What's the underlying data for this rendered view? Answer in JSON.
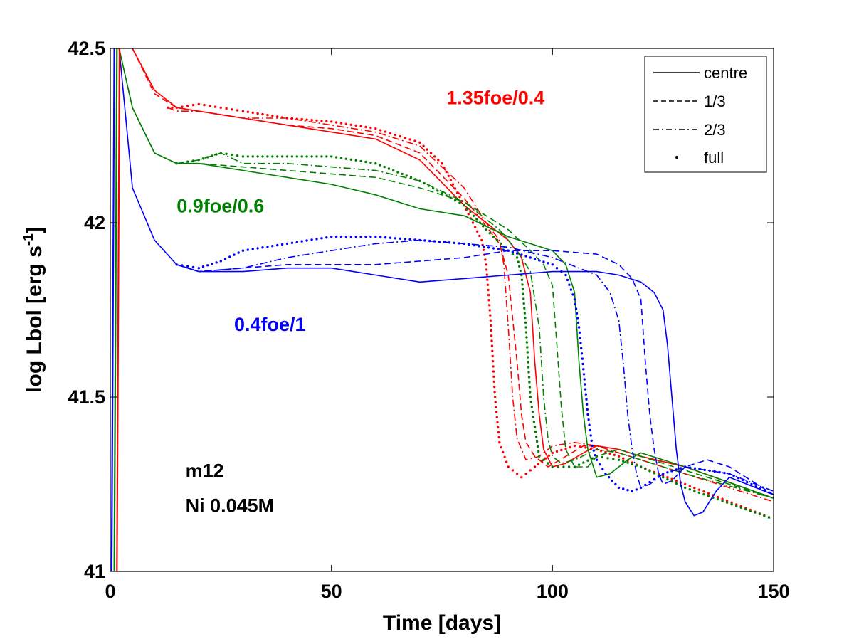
{
  "chart_data": {
    "type": "line",
    "title": "",
    "xlabel": "Time [days]",
    "ylabel": "log Lbol [erg s",
    "ylabel_sup": "-1",
    "ylabel_tail": "]",
    "xlim": [
      0,
      150
    ],
    "ylim": [
      41,
      42.5
    ],
    "xticks": [
      0,
      50,
      100,
      150
    ],
    "yticks": [
      41,
      41.5,
      42,
      42.5
    ],
    "xtick_labels": [
      "0",
      "50",
      "100",
      "150"
    ],
    "ytick_labels": [
      "41",
      "41.5",
      "42",
      "42.5"
    ],
    "grid": false,
    "legend_position": "top-right",
    "legend": [
      {
        "label": "centre",
        "style": "solid"
      },
      {
        "label": "1/3",
        "style": "dashed"
      },
      {
        "label": "2/3",
        "style": "dashdot"
      },
      {
        "label": "full",
        "style": "dots"
      }
    ],
    "annotations": [
      {
        "text": "1.35foe/0.4",
        "color": "#ff0000",
        "x": 76,
        "y": 42.34
      },
      {
        "text": "0.9foe/0.6",
        "color": "#008000",
        "x": 15,
        "y": 42.03
      },
      {
        "text": "0.4foe/1",
        "color": "#0000ff",
        "x": 28,
        "y": 41.69
      },
      {
        "text": "m12",
        "color": "#000000",
        "x": 17,
        "y": 41.27
      },
      {
        "text": "Ni 0.045M",
        "color": "#000000",
        "x": 17,
        "y": 41.17
      }
    ],
    "colors": {
      "red": "#ff0000",
      "green": "#008000",
      "blue": "#0000ff"
    },
    "series": [
      {
        "name": "1.35foe/0.4 centre",
        "color": "#ff0000",
        "style": "solid",
        "x": [
          5,
          10,
          15,
          20,
          30,
          40,
          50,
          60,
          70,
          80,
          85,
          90,
          93,
          95,
          96,
          97,
          98,
          100,
          103,
          107,
          110,
          115,
          120,
          130,
          150
        ],
        "y": [
          42.5,
          42.38,
          42.33,
          42.32,
          42.3,
          42.28,
          42.26,
          42.24,
          42.18,
          42.05,
          42.0,
          41.95,
          41.9,
          41.8,
          41.6,
          41.45,
          41.35,
          41.3,
          41.31,
          41.34,
          41.36,
          41.35,
          41.33,
          41.3,
          41.21
        ]
      },
      {
        "name": "1.35foe/0.4 1/3",
        "color": "#ff0000",
        "style": "dashed",
        "x": [
          5,
          10,
          15,
          20,
          30,
          40,
          50,
          60,
          70,
          80,
          85,
          88,
          90,
          92,
          93,
          94,
          96,
          99,
          103,
          107,
          110,
          115,
          120,
          130,
          150
        ],
        "y": [
          42.5,
          42.37,
          42.33,
          42.32,
          42.3,
          42.28,
          42.27,
          42.25,
          42.2,
          42.07,
          41.99,
          41.94,
          41.85,
          41.6,
          41.45,
          41.37,
          41.33,
          41.3,
          41.33,
          41.36,
          41.36,
          41.35,
          41.33,
          41.3,
          41.21
        ]
      },
      {
        "name": "1.35foe/0.4 2/3",
        "color": "#ff0000",
        "style": "dashdot",
        "x": [
          13,
          15,
          20,
          30,
          40,
          50,
          60,
          70,
          80,
          85,
          88,
          89,
          90,
          91,
          92,
          94,
          97,
          100,
          105,
          110,
          115,
          120,
          130,
          150
        ],
        "y": [
          42.33,
          42.32,
          42.32,
          42.3,
          42.3,
          42.28,
          42.26,
          42.22,
          42.1,
          42.0,
          41.95,
          41.88,
          41.7,
          41.5,
          41.38,
          41.32,
          41.33,
          41.36,
          41.37,
          41.36,
          41.34,
          41.32,
          41.28,
          41.2
        ]
      },
      {
        "name": "1.35foe/0.4 full",
        "color": "#ff0000",
        "style": "dots",
        "x": [
          13,
          15,
          20,
          25,
          30,
          40,
          50,
          60,
          70,
          75,
          80,
          84,
          85,
          86,
          87,
          88,
          90,
          93,
          96,
          100,
          105,
          110,
          115,
          120,
          130,
          150
        ],
        "y": [
          42.33,
          42.33,
          42.34,
          42.33,
          42.32,
          42.3,
          42.29,
          42.27,
          42.23,
          42.17,
          42.05,
          41.95,
          41.88,
          41.72,
          41.5,
          41.37,
          41.3,
          41.27,
          41.3,
          41.34,
          41.36,
          41.35,
          41.33,
          41.3,
          41.25,
          41.15
        ]
      },
      {
        "name": "0.9foe/0.6 centre",
        "color": "#008000",
        "style": "solid",
        "x": [
          2,
          5,
          10,
          15,
          20,
          30,
          40,
          50,
          60,
          70,
          80,
          90,
          95,
          100,
          103,
          105,
          106,
          107,
          108,
          110,
          113,
          117,
          120,
          130,
          150
        ],
        "y": [
          42.5,
          42.33,
          42.2,
          42.17,
          42.17,
          42.15,
          42.13,
          42.11,
          42.08,
          42.04,
          42.02,
          41.96,
          41.94,
          41.92,
          41.88,
          41.8,
          41.6,
          41.45,
          41.35,
          41.27,
          41.28,
          41.32,
          41.34,
          41.3,
          41.21
        ]
      },
      {
        "name": "0.9foe/0.6 1/3",
        "color": "#008000",
        "style": "dashed",
        "x": [
          2,
          5,
          10,
          15,
          20,
          30,
          40,
          50,
          60,
          70,
          80,
          90,
          95,
          98,
          100,
          101,
          102,
          103,
          105,
          108,
          110,
          115,
          120,
          130,
          150
        ],
        "y": [
          42.5,
          42.33,
          42.2,
          42.17,
          42.17,
          42.16,
          42.15,
          42.14,
          42.13,
          42.1,
          42.06,
          41.98,
          41.92,
          41.88,
          41.82,
          41.65,
          41.47,
          41.35,
          41.3,
          41.3,
          41.33,
          41.35,
          41.33,
          41.29,
          41.21
        ]
      },
      {
        "name": "0.9foe/0.6 2/3",
        "color": "#008000",
        "style": "dashdot",
        "x": [
          15,
          20,
          25,
          30,
          40,
          50,
          60,
          70,
          80,
          88,
          92,
          95,
          97,
          98,
          99,
          100,
          102,
          105,
          110,
          115,
          120,
          130,
          150
        ],
        "y": [
          42.17,
          42.18,
          42.2,
          42.17,
          42.17,
          42.16,
          42.15,
          42.12,
          42.06,
          41.98,
          41.92,
          41.86,
          41.7,
          41.5,
          41.38,
          41.33,
          41.31,
          41.32,
          41.35,
          41.34,
          41.32,
          41.28,
          41.21
        ]
      },
      {
        "name": "0.9foe/0.6 full",
        "color": "#008000",
        "style": "dots",
        "x": [
          15,
          20,
          25,
          30,
          40,
          50,
          60,
          70,
          80,
          85,
          90,
          92,
          93,
          94,
          95,
          97,
          100,
          105,
          110,
          115,
          120,
          130,
          150
        ],
        "y": [
          42.17,
          42.18,
          42.2,
          42.19,
          42.19,
          42.19,
          42.17,
          42.12,
          42.05,
          41.98,
          41.92,
          41.9,
          41.85,
          41.7,
          41.5,
          41.33,
          41.3,
          41.3,
          41.33,
          41.32,
          41.3,
          41.24,
          41.15
        ]
      },
      {
        "name": "0.4foe/1 centre",
        "color": "#0000ff",
        "style": "solid",
        "x": [
          2,
          5,
          10,
          15,
          20,
          30,
          40,
          50,
          60,
          70,
          80,
          90,
          100,
          110,
          115,
          120,
          123,
          125,
          126,
          127,
          128,
          129,
          130,
          132,
          134,
          137,
          140,
          150
        ],
        "y": [
          42.5,
          42.1,
          41.95,
          41.88,
          41.86,
          41.86,
          41.87,
          41.87,
          41.85,
          41.83,
          41.84,
          41.85,
          41.86,
          41.86,
          41.85,
          41.83,
          41.8,
          41.75,
          41.65,
          41.5,
          41.35,
          41.25,
          41.2,
          41.16,
          41.17,
          41.23,
          41.27,
          41.22
        ]
      },
      {
        "name": "0.4foe/1 1/3",
        "color": "#0000ff",
        "style": "dashed",
        "x": [
          15,
          20,
          30,
          40,
          50,
          60,
          70,
          80,
          90,
          100,
          110,
          115,
          118,
          120,
          121,
          122,
          123,
          124,
          125,
          127,
          130,
          135,
          140,
          150
        ],
        "y": [
          41.88,
          41.86,
          41.87,
          41.88,
          41.88,
          41.88,
          41.89,
          41.9,
          41.92,
          41.92,
          41.91,
          41.88,
          41.84,
          41.78,
          41.6,
          41.45,
          41.35,
          41.28,
          41.25,
          41.26,
          41.3,
          41.32,
          41.3,
          41.22
        ]
      },
      {
        "name": "0.4foe/1 2/3",
        "color": "#0000ff",
        "style": "dashdot",
        "x": [
          15,
          20,
          30,
          40,
          50,
          60,
          70,
          80,
          90,
          100,
          110,
          113,
          115,
          116,
          117,
          118,
          119,
          120,
          122,
          125,
          130,
          140,
          150
        ],
        "y": [
          41.88,
          41.86,
          41.87,
          41.9,
          41.92,
          41.94,
          41.95,
          41.94,
          41.93,
          41.9,
          41.85,
          41.8,
          41.72,
          41.6,
          41.45,
          41.35,
          41.28,
          41.24,
          41.25,
          41.28,
          41.3,
          41.28,
          41.23
        ]
      },
      {
        "name": "0.4foe/1 full",
        "color": "#0000ff",
        "style": "dots",
        "x": [
          15,
          20,
          25,
          30,
          40,
          50,
          60,
          70,
          80,
          90,
          95,
          100,
          103,
          105,
          106,
          107,
          108,
          109,
          110,
          112,
          115,
          118,
          120,
          125,
          130,
          140,
          150
        ],
        "y": [
          41.88,
          41.87,
          41.89,
          41.92,
          41.94,
          41.96,
          41.96,
          41.95,
          41.94,
          41.92,
          41.9,
          41.88,
          41.85,
          41.78,
          41.7,
          41.58,
          41.45,
          41.36,
          41.32,
          41.28,
          41.24,
          41.23,
          41.24,
          41.28,
          41.3,
          41.28,
          41.22
        ]
      }
    ]
  }
}
